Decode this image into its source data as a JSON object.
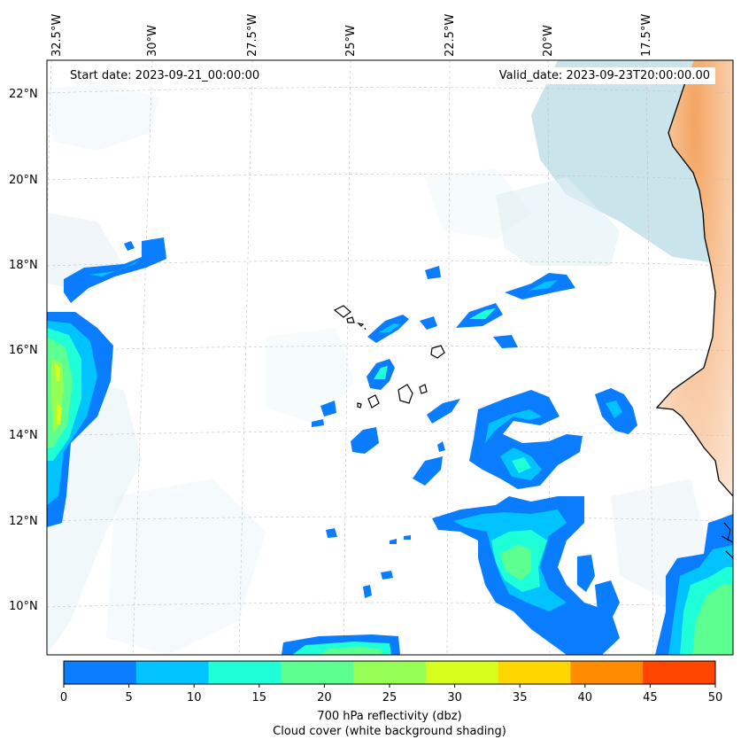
{
  "map": {
    "start_date_label": "Start date: 2023-09-21_00:00:00",
    "valid_date_label": "Valid_date: 2023-09-23T20:00:00.00",
    "lon_labels": [
      "32.5°W",
      "30°W",
      "27.5°W",
      "25°W",
      "22.5°W",
      "20°W",
      "17.5°W"
    ],
    "lat_labels": [
      "22°N",
      "20°N",
      "18°N",
      "16°N",
      "14°N",
      "12°N",
      "10°N"
    ],
    "land_color": "#f4a460",
    "coastline_color": "#000000"
  },
  "colorbar": {
    "ticks": [
      "0",
      "5",
      "10",
      "15",
      "20",
      "25",
      "30",
      "35",
      "40",
      "45",
      "50"
    ],
    "colors": [
      "#0a7dff",
      "#00c3ff",
      "#1effd7",
      "#5dff90",
      "#96ff55",
      "#d7ff1e",
      "#ffd700",
      "#ff8c00",
      "#ff4500"
    ],
    "label": "700 hPa reflectivity (dbz)",
    "sublabel": "Cloud cover (white background shading)"
  }
}
